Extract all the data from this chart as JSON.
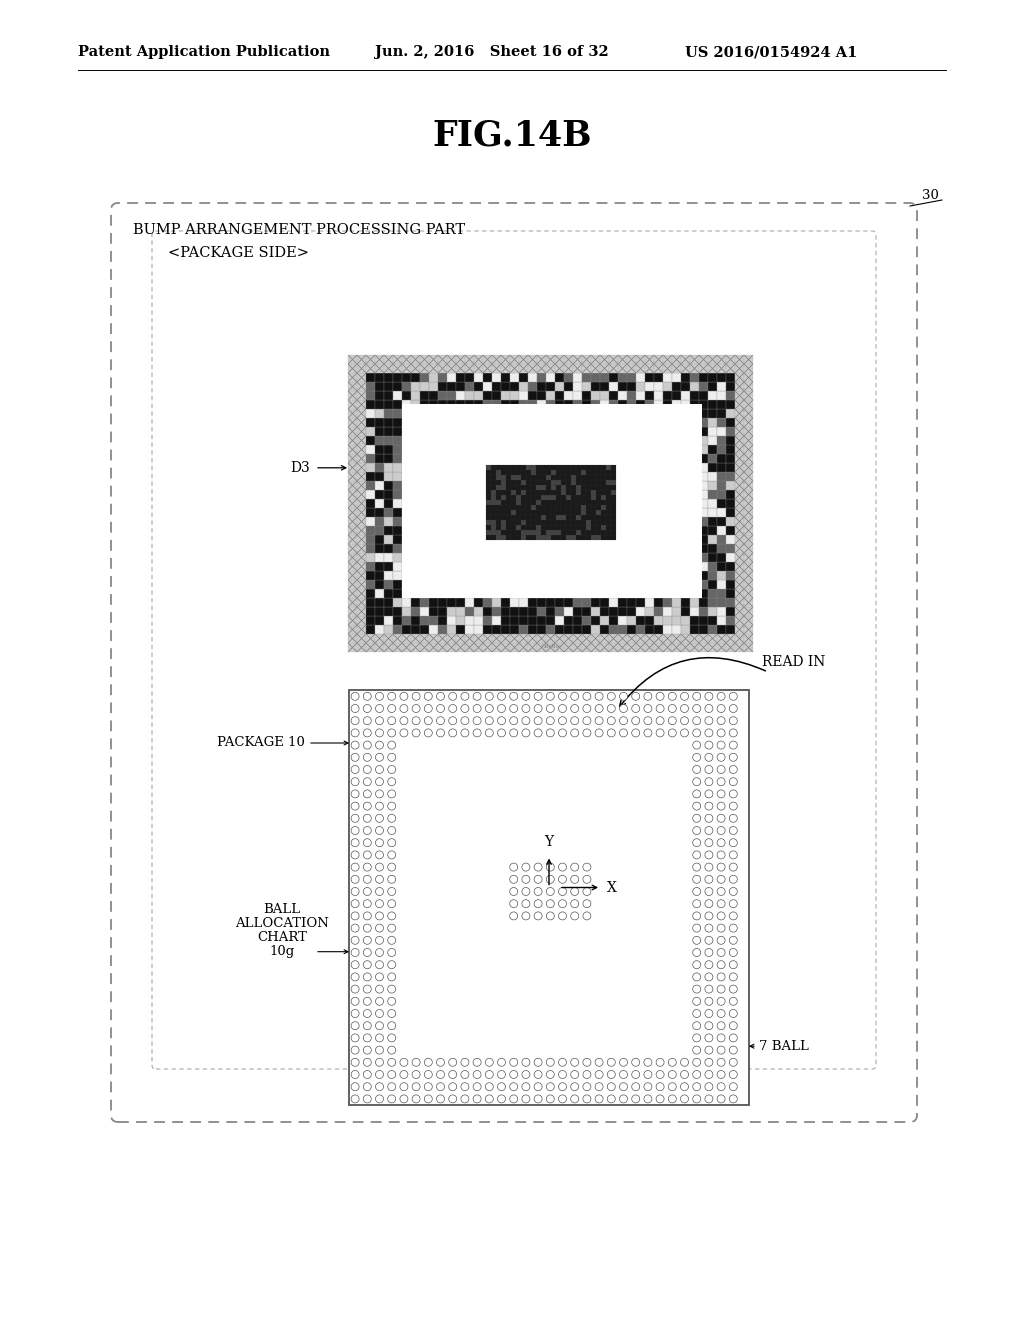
{
  "title": "FIG.14B",
  "header_left": "Patent Application Publication",
  "header_mid": "Jun. 2, 2016   Sheet 16 of 32",
  "header_right": "US 2016/0154924 A1",
  "bg_color": "#ffffff",
  "outer_box_label": "BUMP ARRANGEMENT PROCESSING PART",
  "inner_label_top": "<PACKAGE SIDE>",
  "label_30": "30",
  "label_D3": "D3",
  "label_READ_IN": "READ IN",
  "label_PACKAGE_10": "PACKAGE 10",
  "label_BALL_ALLOC_1": "BALL",
  "label_BALL_ALLOC_2": "ALLOCATION",
  "label_BALL_ALLOC_3": "CHART",
  "label_BALL_ALLOC_4": "10g",
  "label_7BALL": "7 BALL",
  "label_Y": "Y",
  "label_X": "X"
}
